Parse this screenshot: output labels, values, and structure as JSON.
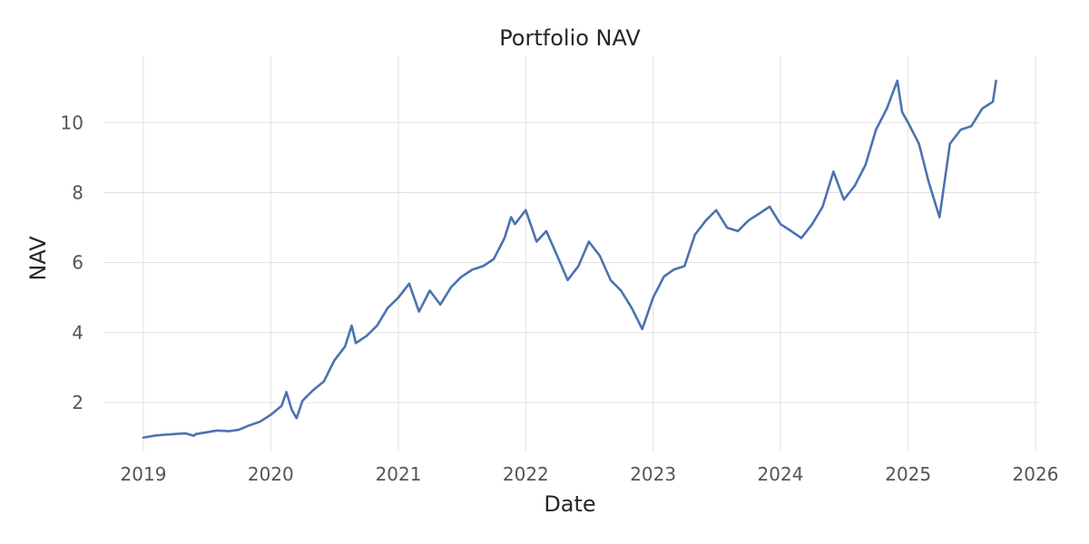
{
  "chart_data": {
    "type": "line",
    "title": "Portfolio NAV",
    "xlabel": "Date",
    "ylabel": "NAV",
    "xlim": [
      "2019-01-01",
      "2026-01-01"
    ],
    "ylim": [
      0.6,
      11.9
    ],
    "x_ticks": [
      "2019",
      "2020",
      "2021",
      "2022",
      "2023",
      "2024",
      "2025",
      "2026"
    ],
    "y_ticks": [
      2,
      4,
      6,
      8,
      10
    ],
    "grid": true,
    "legend": "none",
    "colors": {
      "line": "#4c72b0",
      "grid": "#e0e0e0",
      "background": "#ffffff"
    },
    "series": [
      {
        "x": [
          "2019-01-01",
          "2019-02-01",
          "2019-03-01",
          "2019-04-01",
          "2019-05-01",
          "2019-05-25",
          "2019-06-01",
          "2019-07-01",
          "2019-08-01",
          "2019-09-01",
          "2019-10-01",
          "2019-11-01",
          "2019-12-01",
          "2020-01-01",
          "2020-02-01",
          "2020-02-15",
          "2020-03-01",
          "2020-03-15",
          "2020-04-01",
          "2020-05-01",
          "2020-06-01",
          "2020-07-01",
          "2020-08-01",
          "2020-08-20",
          "2020-09-01",
          "2020-10-01",
          "2020-11-01",
          "2020-12-01",
          "2021-01-01",
          "2021-02-01",
          "2021-03-01",
          "2021-04-01",
          "2021-05-01",
          "2021-06-01",
          "2021-07-01",
          "2021-08-01",
          "2021-09-01",
          "2021-10-01",
          "2021-11-01",
          "2021-11-20",
          "2021-12-01",
          "2022-01-01",
          "2022-02-01",
          "2022-03-01",
          "2022-04-01",
          "2022-05-01",
          "2022-06-01",
          "2022-07-01",
          "2022-08-01",
          "2022-09-01",
          "2022-10-01",
          "2022-11-01",
          "2022-12-01",
          "2023-01-01",
          "2023-02-01",
          "2023-03-01",
          "2023-04-01",
          "2023-05-01",
          "2023-06-01",
          "2023-07-01",
          "2023-08-01",
          "2023-09-01",
          "2023-10-01",
          "2023-11-01",
          "2023-12-01",
          "2024-01-01",
          "2024-02-01",
          "2024-03-01",
          "2024-04-01",
          "2024-05-01",
          "2024-06-01",
          "2024-07-01",
          "2024-08-01",
          "2024-09-01",
          "2024-10-01",
          "2024-11-01",
          "2024-12-01",
          "2024-12-15",
          "2025-01-01",
          "2025-02-01",
          "2025-03-01",
          "2025-04-01",
          "2025-05-01",
          "2025-06-01",
          "2025-07-01",
          "2025-08-01",
          "2025-09-01",
          "2025-09-10"
        ],
        "values": [
          1.0,
          1.05,
          1.08,
          1.1,
          1.12,
          1.05,
          1.1,
          1.15,
          1.2,
          1.18,
          1.22,
          1.35,
          1.45,
          1.65,
          1.9,
          2.3,
          1.8,
          1.55,
          2.05,
          2.35,
          2.6,
          3.2,
          3.6,
          4.2,
          3.7,
          3.9,
          4.2,
          4.7,
          5.0,
          5.4,
          4.6,
          5.2,
          4.8,
          5.3,
          5.6,
          5.8,
          5.9,
          6.1,
          6.7,
          7.3,
          7.1,
          7.5,
          6.6,
          6.9,
          6.2,
          5.5,
          5.9,
          6.6,
          6.2,
          5.5,
          5.2,
          4.7,
          4.1,
          5.0,
          5.6,
          5.8,
          5.9,
          6.8,
          7.2,
          7.5,
          7.0,
          6.9,
          7.2,
          7.4,
          7.6,
          7.1,
          6.9,
          6.7,
          7.1,
          7.6,
          8.6,
          7.8,
          8.2,
          8.8,
          9.8,
          10.4,
          11.2,
          10.3,
          10.0,
          9.4,
          8.3,
          7.3,
          9.4,
          9.8,
          9.9,
          10.4,
          10.6,
          11.2
        ]
      }
    ]
  }
}
